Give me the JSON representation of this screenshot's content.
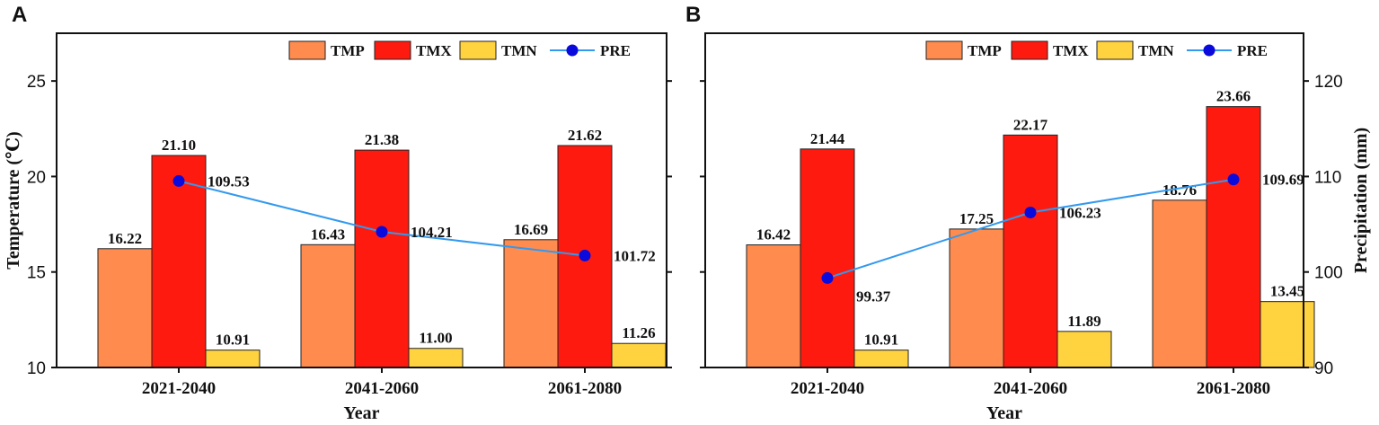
{
  "colors": {
    "TMP": "#FF8C4E",
    "TMX": "#FF1A0F",
    "TMN": "#FFD23F",
    "PRE_line": "#3399EE",
    "PRE_marker": "#0A0ADD"
  },
  "chart_data": [
    {
      "type": "bar",
      "panel_label": "A",
      "categories": [
        "2021-2040",
        "2041-2060",
        "2061-2080"
      ],
      "series": [
        {
          "name": "TMP",
          "values": [
            16.22,
            16.43,
            16.69
          ],
          "labels": [
            "16.22",
            "16.43",
            "16.69"
          ]
        },
        {
          "name": "TMX",
          "values": [
            21.1,
            21.38,
            21.62
          ],
          "labels": [
            "21.10",
            "21.38",
            "21.62"
          ]
        },
        {
          "name": "TMN",
          "values": [
            10.91,
            11.0,
            11.26
          ],
          "labels": [
            "10.91",
            "11.00",
            "11.26"
          ]
        }
      ],
      "line_series": {
        "name": "PRE",
        "type": "line",
        "axis": "right",
        "values": [
          109.53,
          104.21,
          101.72
        ],
        "labels": [
          "109.53",
          "104.21",
          "101.72"
        ]
      },
      "xlabel": "Year",
      "ylabel": "Temperature (℃)",
      "ylim": [
        10,
        27.5
      ],
      "yticks": [
        10,
        15,
        20,
        25
      ],
      "ytick_labels": [
        "10",
        "15",
        "20",
        "25"
      ],
      "y2lim": [
        90,
        125
      ],
      "legend": [
        "TMP",
        "TMX",
        "TMN",
        "PRE"
      ],
      "legend_position": "top-right"
    },
    {
      "type": "bar",
      "panel_label": "B",
      "categories": [
        "2021-2040",
        "2041-2060",
        "2061-2080"
      ],
      "series": [
        {
          "name": "TMP",
          "values": [
            16.42,
            17.25,
            18.76
          ],
          "labels": [
            "16.42",
            "17.25",
            "18.76"
          ]
        },
        {
          "name": "TMX",
          "values": [
            21.44,
            22.17,
            23.66
          ],
          "labels": [
            "21.44",
            "22.17",
            "23.66"
          ]
        },
        {
          "name": "TMN",
          "values": [
            10.91,
            11.89,
            13.45
          ],
          "labels": [
            "10.91",
            "11.89",
            "13.45"
          ]
        }
      ],
      "line_series": {
        "name": "PRE",
        "type": "line",
        "axis": "right",
        "values": [
          99.37,
          106.23,
          109.69
        ],
        "labels": [
          "99.37",
          "106.23",
          "109.69"
        ]
      },
      "xlabel": "Year",
      "ylabel": "Precipitation (mm)",
      "ylim": [
        10,
        27.5
      ],
      "y2lim": [
        90,
        125
      ],
      "y2ticks": [
        90,
        100,
        110,
        120
      ],
      "y2tick_labels": [
        "90",
        "100",
        "110",
        "120"
      ],
      "legend": [
        "TMP",
        "TMX",
        "TMN",
        "PRE"
      ],
      "legend_position": "top-right"
    }
  ]
}
